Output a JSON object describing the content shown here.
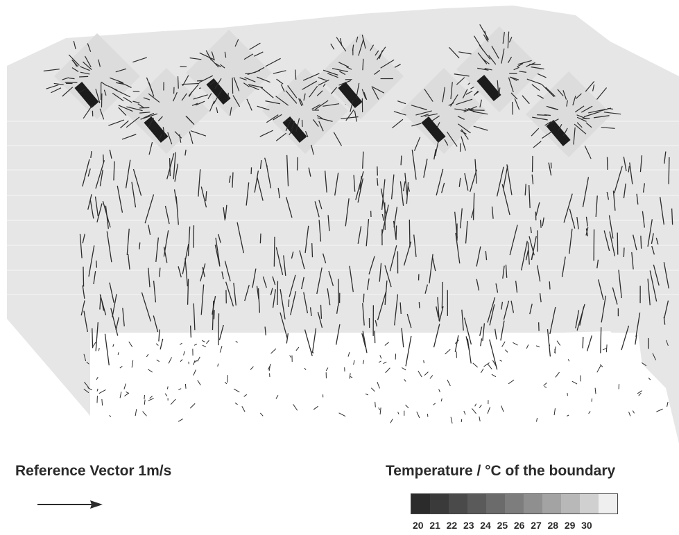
{
  "reference": {
    "label": "Reference Vector 1m/s"
  },
  "legend": {
    "title": "Temperature / °C of the boundary",
    "ticks": [
      "20",
      "21",
      "22",
      "23",
      "24",
      "25",
      "26",
      "27",
      "28",
      "29",
      "30"
    ],
    "colors": [
      "#2b2b2b",
      "#3a3a3a",
      "#4a4a4a",
      "#5a5a5a",
      "#6b6b6b",
      "#7d7d7d",
      "#8f8f8f",
      "#a3a3a3",
      "#b8b8b8",
      "#d0d0d0",
      "#efefef"
    ]
  },
  "colors": {
    "boundary_fill": "#e6e6e6",
    "vector_color": "#2b2b2b",
    "room_background": "#ffffff"
  }
}
